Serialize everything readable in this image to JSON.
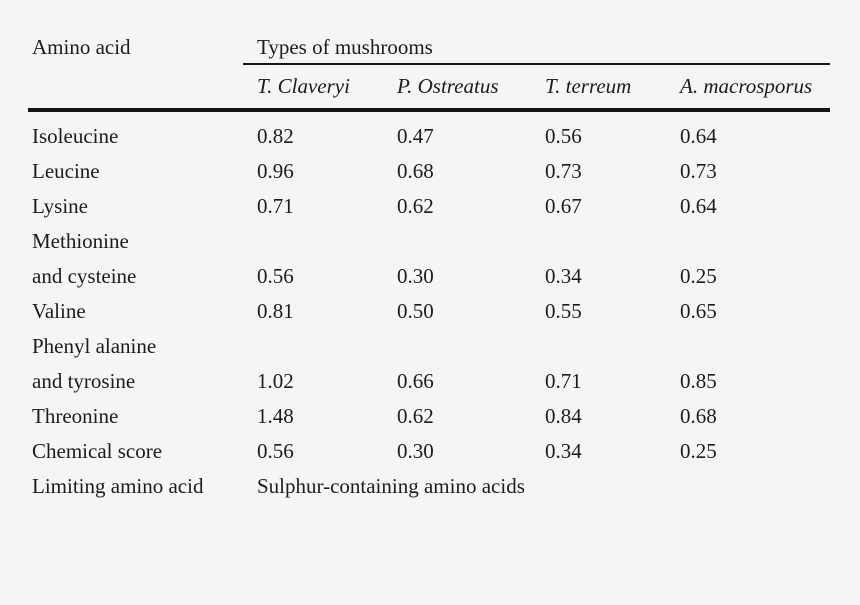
{
  "page": {
    "background": "#f5f5f3",
    "text_color": "#1c1c1c",
    "rule_color": "#151515"
  },
  "table": {
    "header": {
      "row_label": "Amino acid",
      "group_label": "Types of mushrooms",
      "columns": [
        "T. Claveryi",
        "P. Ostreatus",
        "T. terreum",
        "A. macrosporus"
      ]
    },
    "rows": [
      {
        "label": "Isoleucine",
        "values": [
          "0.82",
          "0.47",
          "0.56",
          "0.64"
        ]
      },
      {
        "label": "Leucine",
        "values": [
          "0.96",
          "0.68",
          "0.73",
          "0.73"
        ]
      },
      {
        "label": "Lysine",
        "values": [
          "0.71",
          "0.62",
          "0.67",
          "0.64"
        ]
      },
      {
        "label": "Methionine and cysteine",
        "label_lines": [
          "Methionine",
          "and cysteine"
        ],
        "values": [
          "0.56",
          "0.30",
          "0.34",
          "0.25"
        ]
      },
      {
        "label": "Valine",
        "values": [
          "0.81",
          "0.50",
          "0.55",
          "0.65"
        ]
      },
      {
        "label": "Phenyl alanine and tyrosine",
        "label_lines": [
          "Phenyl alanine",
          "and tyrosine"
        ],
        "values": [
          "1.02",
          "0.66",
          "0.71",
          "0.85"
        ]
      },
      {
        "label": "Threonine",
        "values": [
          "1.48",
          "0.62",
          "0.84",
          "0.68"
        ]
      },
      {
        "label": "Chemical score",
        "values": [
          "0.56",
          "0.30",
          "0.34",
          "0.25"
        ]
      },
      {
        "label": "Limiting amino acid",
        "span_value": "Sulphur-containing amino acids"
      }
    ]
  }
}
